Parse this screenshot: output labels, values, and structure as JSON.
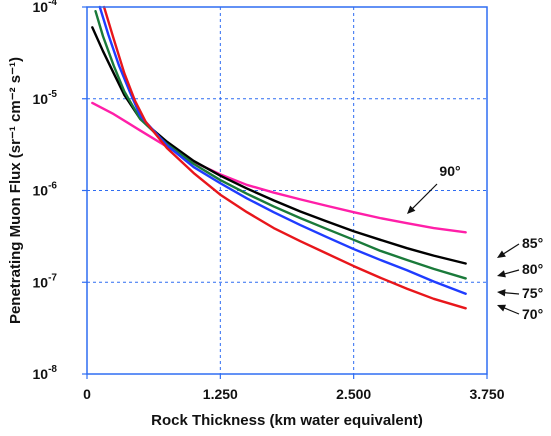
{
  "chart_data": {
    "type": "line",
    "title": "",
    "xlabel": "Rock Thickness (km water equivalent)",
    "ylabel": "Penetrating Muon Flux (sr⁻¹ cm⁻² s⁻¹)",
    "xlim": [
      0,
      3.75
    ],
    "ylim": [
      1e-08,
      0.0001
    ],
    "y_scale": "log",
    "grid": true,
    "grid_style": "dashed",
    "x_ticks": [
      {
        "value": 0,
        "label": "0"
      },
      {
        "value": 1.25,
        "label": "1.250"
      },
      {
        "value": 2.5,
        "label": "2.500"
      },
      {
        "value": 3.75,
        "label": "3.750"
      }
    ],
    "y_ticks": [
      {
        "value": 1e-08,
        "base": "10",
        "exp": "-8"
      },
      {
        "value": 1e-07,
        "base": "10",
        "exp": "-7"
      },
      {
        "value": 1e-06,
        "base": "10",
        "exp": "-6"
      },
      {
        "value": 1e-05,
        "base": "10",
        "exp": "-5"
      },
      {
        "value": 0.0001,
        "base": "10",
        "exp": "-4"
      }
    ],
    "series": [
      {
        "name": "90°",
        "color": "#ff1fa8",
        "x": [
          0.05,
          0.25,
          0.5,
          0.75,
          1.0,
          1.25,
          1.5,
          1.75,
          2.0,
          2.25,
          2.5,
          2.75,
          3.0,
          3.25,
          3.55
        ],
        "y": [
          9e-06,
          6.8e-06,
          4.5e-06,
          3e-06,
          2.05e-06,
          1.5e-06,
          1.15e-06,
          9.5e-07,
          8e-07,
          6.8e-07,
          5.8e-07,
          5e-07,
          4.4e-07,
          3.9e-07,
          3.5e-07
        ]
      },
      {
        "name": "85°",
        "color": "#000000",
        "x": [
          0.05,
          0.15,
          0.25,
          0.35,
          0.5,
          0.75,
          1.0,
          1.25,
          1.5,
          1.75,
          2.0,
          2.25,
          2.5,
          2.75,
          3.0,
          3.25,
          3.55
        ],
        "y": [
          6e-05,
          3.3e-05,
          1.9e-05,
          1.1e-05,
          6e-06,
          3.4e-06,
          2.1e-06,
          1.45e-06,
          1.05e-06,
          7.8e-07,
          5.9e-07,
          4.6e-07,
          3.6e-07,
          2.9e-07,
          2.35e-07,
          1.95e-07,
          1.6e-07
        ]
      },
      {
        "name": "80°",
        "color": "#1a7a3a",
        "x": [
          0.08,
          0.15,
          0.25,
          0.35,
          0.5,
          0.75,
          1.0,
          1.25,
          1.5,
          1.75,
          2.0,
          2.25,
          2.5,
          2.75,
          3.0,
          3.25,
          3.55
        ],
        "y": [
          9e-05,
          4.8e-05,
          2.3e-05,
          1.2e-05,
          6e-06,
          3.2e-06,
          1.95e-06,
          1.3e-06,
          9.2e-07,
          6.7e-07,
          5e-07,
          3.8e-07,
          2.9e-07,
          2.2e-07,
          1.75e-07,
          1.4e-07,
          1.1e-07
        ]
      },
      {
        "name": "75°",
        "color": "#1f3cff",
        "x": [
          0.12,
          0.2,
          0.3,
          0.4,
          0.5,
          0.75,
          1.0,
          1.25,
          1.5,
          1.75,
          2.0,
          2.25,
          2.5,
          2.75,
          3.0,
          3.25,
          3.55
        ],
        "y": [
          0.0001,
          5e-05,
          2.3e-05,
          1.2e-05,
          6.5e-06,
          3.1e-06,
          1.8e-06,
          1.2e-06,
          8.2e-07,
          5.8e-07,
          4.2e-07,
          3.1e-07,
          2.3e-07,
          1.75e-07,
          1.35e-07,
          1.02e-07,
          7.5e-08
        ]
      },
      {
        "name": "70°",
        "color": "#e8161b",
        "x": [
          0.16,
          0.25,
          0.35,
          0.45,
          0.55,
          0.75,
          1.0,
          1.25,
          1.5,
          1.75,
          2.0,
          2.25,
          2.5,
          2.75,
          3.0,
          3.25,
          3.55
        ],
        "y": [
          0.0001,
          4.5e-05,
          1.9e-05,
          9.5e-06,
          5.6e-06,
          2.9e-06,
          1.55e-06,
          9e-07,
          5.8e-07,
          3.9e-07,
          2.8e-07,
          2.05e-07,
          1.5e-07,
          1.12e-07,
          8.5e-08,
          6.6e-08,
          5.2e-08
        ]
      }
    ],
    "labels": [
      {
        "text": "90°",
        "color": "#000000",
        "series": "90°"
      },
      {
        "text": "85°",
        "color": "#000000",
        "series": "85°"
      },
      {
        "text": "80°",
        "color": "#000000",
        "series": "80°"
      },
      {
        "text": "75°",
        "color": "#000000",
        "series": "75°"
      },
      {
        "text": "70°",
        "color": "#000000",
        "series": "70°"
      }
    ]
  }
}
